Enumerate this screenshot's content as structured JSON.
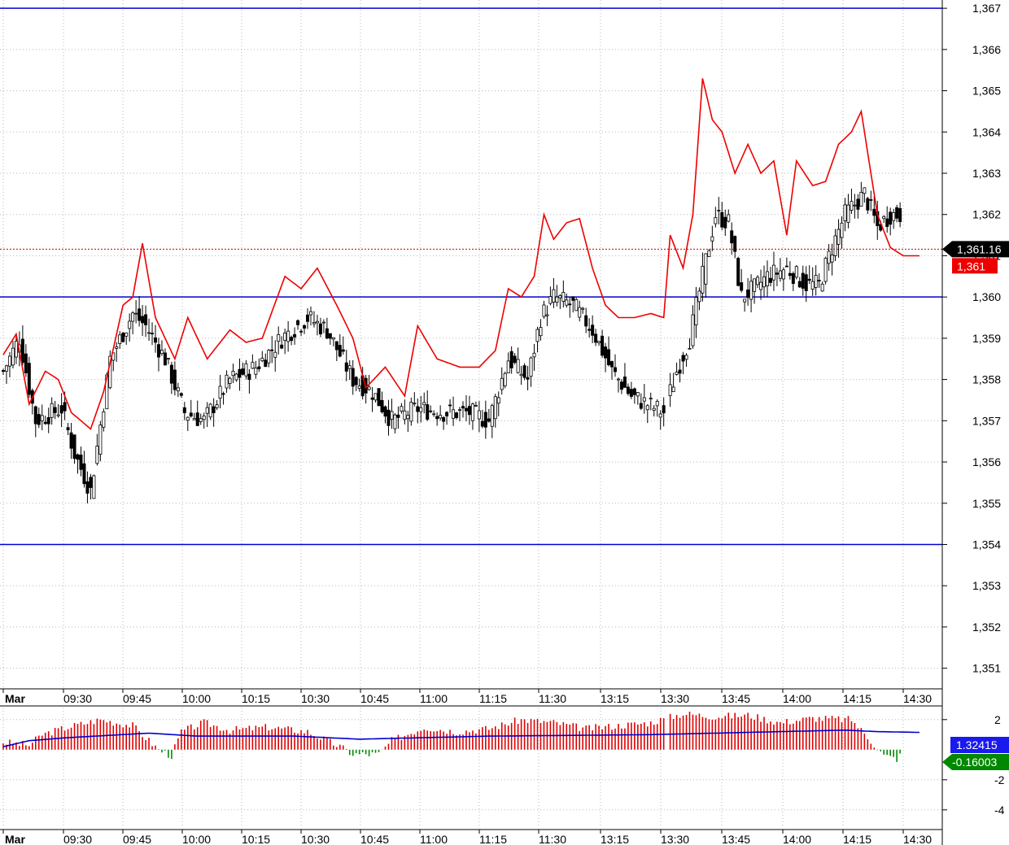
{
  "chart_data": [
    {
      "type": "candlestick",
      "panel": "price",
      "ylim": [
        1.3505,
        1.3672
      ],
      "y_ticks": [
        "1,367",
        "1,366",
        "1,365",
        "1,364",
        "1,363",
        "1,362",
        "1,361",
        "1,360",
        "1,359",
        "1,358",
        "1,357",
        "1,356",
        "1,355",
        "1,354",
        "1,353",
        "1,352",
        "1,351"
      ],
      "y_tick_values": [
        1.367,
        1.366,
        1.365,
        1.364,
        1.363,
        1.362,
        1.361,
        1.36,
        1.359,
        1.358,
        1.357,
        1.356,
        1.355,
        1.354,
        1.353,
        1.352,
        1.351
      ],
      "x_labels": [
        "Mar",
        "09:30",
        "09:45",
        "10:00",
        "10:15",
        "10:30",
        "10:45",
        "11:00",
        "11:15",
        "11:30",
        "13:15",
        "13:30",
        "13:45",
        "14:00",
        "14:15",
        "14:30"
      ],
      "grid": true,
      "horizontal_levels": [
        {
          "value": 1.367,
          "color": "#0000cc"
        },
        {
          "value": 1.36,
          "color": "#0000cc"
        },
        {
          "value": 1.354,
          "color": "#0000cc"
        }
      ],
      "last_price": {
        "label": "1,361.16",
        "value": 1.36116,
        "bg": "#000000"
      },
      "red_line_last": {
        "label": "1,361",
        "value": 1.3609,
        "bg": "#ee0000"
      },
      "candle_anchors": [
        {
          "i": 0,
          "close": 1.3582
        },
        {
          "i": 5,
          "close": 1.359
        },
        {
          "i": 10,
          "close": 1.357
        },
        {
          "i": 18,
          "close": 1.3573
        },
        {
          "i": 22,
          "close": 1.3562
        },
        {
          "i": 27,
          "close": 1.3553
        },
        {
          "i": 33,
          "close": 1.3585
        },
        {
          "i": 40,
          "close": 1.3596
        },
        {
          "i": 44,
          "close": 1.3593
        },
        {
          "i": 50,
          "close": 1.3585
        },
        {
          "i": 56,
          "close": 1.3572
        },
        {
          "i": 62,
          "close": 1.357
        },
        {
          "i": 70,
          "close": 1.358
        },
        {
          "i": 78,
          "close": 1.3583
        },
        {
          "i": 86,
          "close": 1.359
        },
        {
          "i": 94,
          "close": 1.3595
        },
        {
          "i": 100,
          "close": 1.3592
        },
        {
          "i": 108,
          "close": 1.358
        },
        {
          "i": 114,
          "close": 1.3577
        },
        {
          "i": 120,
          "close": 1.357
        },
        {
          "i": 128,
          "close": 1.3573
        },
        {
          "i": 136,
          "close": 1.3572
        },
        {
          "i": 144,
          "close": 1.3572
        },
        {
          "i": 150,
          "close": 1.357
        },
        {
          "i": 156,
          "close": 1.3585
        },
        {
          "i": 162,
          "close": 1.358
        },
        {
          "i": 166,
          "close": 1.3595
        },
        {
          "i": 170,
          "close": 1.36
        },
        {
          "i": 176,
          "close": 1.3598
        },
        {
          "i": 182,
          "close": 1.3592
        },
        {
          "i": 188,
          "close": 1.3582
        },
        {
          "i": 194,
          "close": 1.3576
        },
        {
          "i": 204,
          "close": 1.3572
        },
        {
          "i": 208,
          "close": 1.3582
        },
        {
          "i": 212,
          "close": 1.359
        },
        {
          "i": 216,
          "close": 1.3605
        },
        {
          "i": 220,
          "close": 1.362
        },
        {
          "i": 224,
          "close": 1.3618
        },
        {
          "i": 228,
          "close": 1.36
        },
        {
          "i": 232,
          "close": 1.3602
        },
        {
          "i": 236,
          "close": 1.3605
        },
        {
          "i": 242,
          "close": 1.3607
        },
        {
          "i": 248,
          "close": 1.3603
        },
        {
          "i": 252,
          "close": 1.3603
        },
        {
          "i": 256,
          "close": 1.3612
        },
        {
          "i": 260,
          "close": 1.362
        },
        {
          "i": 266,
          "close": 1.3625
        },
        {
          "i": 270,
          "close": 1.3617
        },
        {
          "i": 274,
          "close": 1.362
        }
      ],
      "red_line": [
        {
          "i": 0,
          "v": 1.3586
        },
        {
          "i": 4,
          "v": 1.3591
        },
        {
          "i": 8,
          "v": 1.3574
        },
        {
          "i": 13,
          "v": 1.3582
        },
        {
          "i": 17,
          "v": 1.358
        },
        {
          "i": 21,
          "v": 1.3572
        },
        {
          "i": 27,
          "v": 1.3568
        },
        {
          "i": 31,
          "v": 1.3577
        },
        {
          "i": 37,
          "v": 1.3598
        },
        {
          "i": 40,
          "v": 1.36
        },
        {
          "i": 43,
          "v": 1.3613
        },
        {
          "i": 47,
          "v": 1.3595
        },
        {
          "i": 53,
          "v": 1.3585
        },
        {
          "i": 57,
          "v": 1.3595
        },
        {
          "i": 63,
          "v": 1.3585
        },
        {
          "i": 70,
          "v": 1.3592
        },
        {
          "i": 75,
          "v": 1.3589
        },
        {
          "i": 80,
          "v": 1.359
        },
        {
          "i": 87,
          "v": 1.3605
        },
        {
          "i": 92,
          "v": 1.3602
        },
        {
          "i": 97,
          "v": 1.3607
        },
        {
          "i": 103,
          "v": 1.3598
        },
        {
          "i": 108,
          "v": 1.359
        },
        {
          "i": 112,
          "v": 1.3578
        },
        {
          "i": 118,
          "v": 1.3583
        },
        {
          "i": 124,
          "v": 1.3576
        },
        {
          "i": 128,
          "v": 1.3593
        },
        {
          "i": 134,
          "v": 1.3585
        },
        {
          "i": 141,
          "v": 1.3583
        },
        {
          "i": 147,
          "v": 1.3583
        },
        {
          "i": 152,
          "v": 1.3587
        },
        {
          "i": 156,
          "v": 1.3602
        },
        {
          "i": 160,
          "v": 1.36
        },
        {
          "i": 164,
          "v": 1.3605
        },
        {
          "i": 167,
          "v": 1.362
        },
        {
          "i": 170,
          "v": 1.3614
        },
        {
          "i": 174,
          "v": 1.3618
        },
        {
          "i": 178,
          "v": 1.3619
        },
        {
          "i": 182,
          "v": 1.3607
        },
        {
          "i": 186,
          "v": 1.3598
        },
        {
          "i": 190,
          "v": 1.3595
        },
        {
          "i": 195,
          "v": 1.3595
        },
        {
          "i": 200,
          "v": 1.3596
        },
        {
          "i": 204,
          "v": 1.3595
        },
        {
          "i": 206,
          "v": 1.3615
        },
        {
          "i": 210,
          "v": 1.3607
        },
        {
          "i": 213,
          "v": 1.362
        },
        {
          "i": 216,
          "v": 1.3653
        },
        {
          "i": 219,
          "v": 1.3643
        },
        {
          "i": 222,
          "v": 1.364
        },
        {
          "i": 226,
          "v": 1.363
        },
        {
          "i": 230,
          "v": 1.3637
        },
        {
          "i": 234,
          "v": 1.363
        },
        {
          "i": 238,
          "v": 1.3633
        },
        {
          "i": 242,
          "v": 1.3615
        },
        {
          "i": 245,
          "v": 1.3633
        },
        {
          "i": 250,
          "v": 1.3627
        },
        {
          "i": 254,
          "v": 1.3628
        },
        {
          "i": 258,
          "v": 1.3637
        },
        {
          "i": 262,
          "v": 1.364
        },
        {
          "i": 265,
          "v": 1.3645
        },
        {
          "i": 268,
          "v": 1.363
        },
        {
          "i": 270,
          "v": 1.362
        },
        {
          "i": 274,
          "v": 1.3612
        },
        {
          "i": 278,
          "v": 1.361
        },
        {
          "i": 283,
          "v": 1.361
        }
      ]
    },
    {
      "type": "histogram",
      "panel": "oscillator",
      "ylim": [
        -5.2,
        2.8
      ],
      "y_ticks": [
        "2",
        "-2",
        "-4"
      ],
      "y_tick_values": [
        2,
        -2,
        -4
      ],
      "x_labels": [
        "Mar",
        "09:30",
        "09:45",
        "10:00",
        "10:15",
        "10:30",
        "10:45",
        "11:00",
        "11:15",
        "11:30",
        "13:15",
        "13:30",
        "13:45",
        "14:00",
        "14:15",
        "14:30"
      ],
      "blue_value_label": "1.32415",
      "histogram_value_label": "-0.16003",
      "blue_line": [
        {
          "i": 0,
          "v": 0.2
        },
        {
          "i": 8,
          "v": 0.6
        },
        {
          "i": 20,
          "v": 0.8
        },
        {
          "i": 45,
          "v": 1.1
        },
        {
          "i": 60,
          "v": 0.9
        },
        {
          "i": 90,
          "v": 0.9
        },
        {
          "i": 110,
          "v": 0.7
        },
        {
          "i": 150,
          "v": 0.9
        },
        {
          "i": 200,
          "v": 1.0
        },
        {
          "i": 260,
          "v": 1.3
        },
        {
          "i": 270,
          "v": 1.2
        },
        {
          "i": 283,
          "v": 1.15
        }
      ],
      "bars_anchor": [
        {
          "i": 0,
          "v": 0.5
        },
        {
          "i": 8,
          "v": 0.3
        },
        {
          "i": 12,
          "v": 1.0
        },
        {
          "i": 20,
          "v": 1.5
        },
        {
          "i": 30,
          "v": 2.0
        },
        {
          "i": 40,
          "v": 1.6
        },
        {
          "i": 48,
          "v": 0.0
        },
        {
          "i": 52,
          "v": -0.4
        },
        {
          "i": 55,
          "v": 1.2
        },
        {
          "i": 62,
          "v": 1.8
        },
        {
          "i": 70,
          "v": 1.3
        },
        {
          "i": 82,
          "v": 1.5
        },
        {
          "i": 94,
          "v": 1.2
        },
        {
          "i": 104,
          "v": 0.2
        },
        {
          "i": 108,
          "v": -0.3
        },
        {
          "i": 116,
          "v": -0.3
        },
        {
          "i": 120,
          "v": 0.6
        },
        {
          "i": 130,
          "v": 1.5
        },
        {
          "i": 140,
          "v": 1.2
        },
        {
          "i": 150,
          "v": 1.4
        },
        {
          "i": 160,
          "v": 2.0
        },
        {
          "i": 170,
          "v": 1.8
        },
        {
          "i": 180,
          "v": 1.4
        },
        {
          "i": 190,
          "v": 1.6
        },
        {
          "i": 200,
          "v": 1.8
        },
        {
          "i": 210,
          "v": 2.4
        },
        {
          "i": 220,
          "v": 2.2
        },
        {
          "i": 230,
          "v": 2.3
        },
        {
          "i": 240,
          "v": 1.8
        },
        {
          "i": 250,
          "v": 2.1
        },
        {
          "i": 262,
          "v": 2.0
        },
        {
          "i": 268,
          "v": 0.6
        },
        {
          "i": 272,
          "v": -0.4
        },
        {
          "i": 276,
          "v": -0.6
        },
        {
          "i": 278,
          "v": -0.2
        }
      ]
    }
  ],
  "colors": {
    "candle_outline": "#000000",
    "red_line": "#ee0000",
    "level_line": "#0000cc",
    "hist_pos": "#dd0000",
    "hist_neg": "#008800",
    "osc_line": "#0000cc",
    "grid": "#b8b8b8"
  }
}
